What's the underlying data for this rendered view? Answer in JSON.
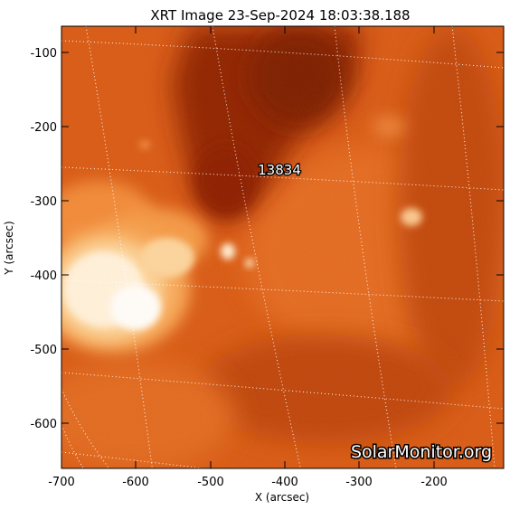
{
  "title": "XRT Image 23-Sep-2024 18:03:38.188",
  "axes": {
    "xlabel": "X (arcsec)",
    "ylabel": "Y (arcsec)",
    "x_ticks": [
      "-700",
      "-600",
      "-500",
      "-400",
      "-300",
      "-200"
    ],
    "y_ticks": [
      "-100",
      "-200",
      "-300",
      "-400",
      "-500",
      "-600"
    ]
  },
  "image": {
    "colormap": "hot orange (XRT)",
    "grid": "heliographic dotted grid, white",
    "active_region_label": "13834"
  },
  "watermark": "SolarMonitor.org"
}
